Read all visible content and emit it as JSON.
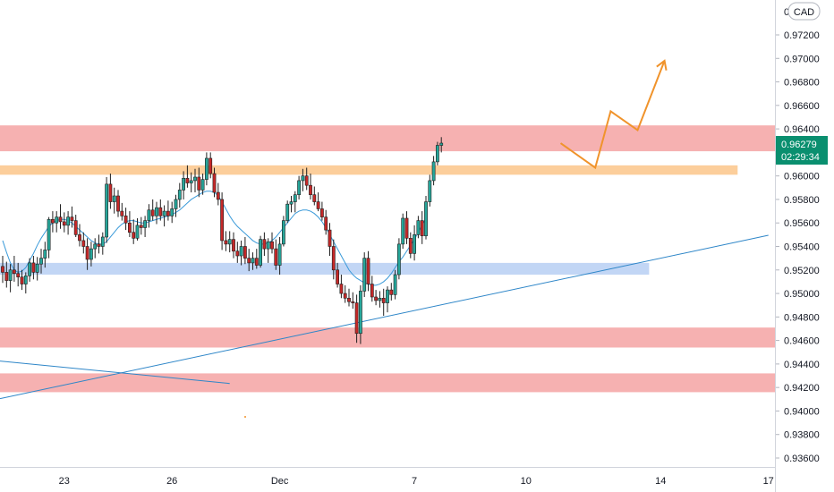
{
  "chart_data": {
    "type": "candlestick",
    "currency": "CAD",
    "y_ticks": [
      "0.97200",
      "0.97000",
      "0.96800",
      "0.96600",
      "0.96400",
      "0.96000",
      "0.95800",
      "0.95600",
      "0.95400",
      "0.95200",
      "0.95000",
      "0.94800",
      "0.94600",
      "0.94400",
      "0.94200",
      "0.94000",
      "0.93800",
      "0.93600"
    ],
    "x_ticks": [
      "23",
      "26",
      "Dec",
      "7",
      "10",
      "14",
      "17"
    ],
    "x_tick_index": [
      16,
      44,
      72,
      107,
      136,
      171,
      199
    ],
    "last_price": "0.96279",
    "countdown": "02:29:34",
    "colors": {
      "up": "#26a69a",
      "down": "#c62828",
      "red_zone": "#f5a3a3",
      "orange_zone": "#fbc58a",
      "blue_zone": "#b7cff3",
      "trendline": "#2e86c8",
      "ma": "#3a9ad9",
      "projection": "#f0932b",
      "badge": "#0a8f6f"
    },
    "zones": [
      {
        "kind": "red",
        "from": 0.9621,
        "to": 0.9643,
        "start": 0,
        "end": null
      },
      {
        "kind": "orange",
        "from": 0.9601,
        "to": 0.9609,
        "start": 0,
        "end": 191
      },
      {
        "kind": "blue",
        "from": 0.9516,
        "to": 0.9526,
        "start": 0,
        "end": 168
      },
      {
        "kind": "red",
        "from": 0.9454,
        "to": 0.9471,
        "start": 0,
        "end": null
      },
      {
        "kind": "red",
        "from": 0.9416,
        "to": 0.9432,
        "start": 0,
        "end": null
      }
    ],
    "trendlines": [
      {
        "from": [
          0,
          0.94105
        ],
        "to": [
          199,
          0.95495
        ]
      },
      {
        "from": [
          0,
          0.94425
        ],
        "to": [
          59,
          0.94234
        ]
      }
    ],
    "projection_path": [
      [
        145,
        0.96279
      ],
      [
        154,
        0.9607
      ],
      [
        158,
        0.9655
      ],
      [
        165,
        0.9639
      ],
      [
        172,
        0.9698
      ]
    ],
    "candles": [
      [
        0.9523,
        0.9532,
        0.9509,
        0.9518
      ],
      [
        0.9518,
        0.9527,
        0.9505,
        0.9511
      ],
      [
        0.9511,
        0.9525,
        0.9501,
        0.952
      ],
      [
        0.952,
        0.9532,
        0.951,
        0.9517
      ],
      [
        0.9517,
        0.9526,
        0.9506,
        0.9514
      ],
      [
        0.9514,
        0.952,
        0.9503,
        0.9508
      ],
      [
        0.9508,
        0.9518,
        0.95,
        0.9515
      ],
      [
        0.9515,
        0.953,
        0.951,
        0.9526
      ],
      [
        0.9526,
        0.9532,
        0.9512,
        0.9518
      ],
      [
        0.9518,
        0.9531,
        0.9511,
        0.9525
      ],
      [
        0.9525,
        0.9538,
        0.9517,
        0.953
      ],
      [
        0.953,
        0.9544,
        0.9522,
        0.9537
      ],
      [
        0.9537,
        0.9565,
        0.953,
        0.9563
      ],
      [
        0.9563,
        0.957,
        0.9552,
        0.956
      ],
      [
        0.956,
        0.957,
        0.9552,
        0.9565
      ],
      [
        0.9565,
        0.9576,
        0.9555,
        0.9561
      ],
      [
        0.9561,
        0.9569,
        0.9552,
        0.9558
      ],
      [
        0.9558,
        0.957,
        0.955,
        0.9565
      ],
      [
        0.9565,
        0.9574,
        0.9556,
        0.9562
      ],
      [
        0.9562,
        0.9567,
        0.9548,
        0.955
      ],
      [
        0.955,
        0.9559,
        0.954,
        0.9545
      ],
      [
        0.9545,
        0.9552,
        0.9534,
        0.954
      ],
      [
        0.954,
        0.9547,
        0.952,
        0.9529
      ],
      [
        0.9529,
        0.9544,
        0.9523,
        0.9538
      ],
      [
        0.9538,
        0.9547,
        0.953,
        0.9542
      ],
      [
        0.9542,
        0.955,
        0.9534,
        0.954
      ],
      [
        0.954,
        0.9552,
        0.9533,
        0.9548
      ],
      [
        0.9548,
        0.9599,
        0.9543,
        0.9593
      ],
      [
        0.9593,
        0.9602,
        0.9572,
        0.9578
      ],
      [
        0.9578,
        0.959,
        0.9568,
        0.9583
      ],
      [
        0.9583,
        0.9588,
        0.9565,
        0.957
      ],
      [
        0.957,
        0.9577,
        0.9562,
        0.9566
      ],
      [
        0.9566,
        0.9573,
        0.9554,
        0.956
      ],
      [
        0.956,
        0.957,
        0.9548,
        0.9552
      ],
      [
        0.9552,
        0.9563,
        0.9542,
        0.9547
      ],
      [
        0.9547,
        0.9564,
        0.9545,
        0.9558
      ],
      [
        0.9558,
        0.9565,
        0.955,
        0.9556
      ],
      [
        0.9556,
        0.9566,
        0.9548,
        0.9562
      ],
      [
        0.9562,
        0.9576,
        0.9556,
        0.9571
      ],
      [
        0.9571,
        0.958,
        0.9562,
        0.9566
      ],
      [
        0.9566,
        0.9578,
        0.9559,
        0.9573
      ],
      [
        0.9573,
        0.958,
        0.9562,
        0.9566
      ],
      [
        0.9566,
        0.9575,
        0.9557,
        0.957
      ],
      [
        0.957,
        0.9579,
        0.9562,
        0.9566
      ],
      [
        0.9566,
        0.9578,
        0.956,
        0.9572
      ],
      [
        0.9572,
        0.9584,
        0.9565,
        0.958
      ],
      [
        0.958,
        0.9594,
        0.9573,
        0.9588
      ],
      [
        0.9588,
        0.9604,
        0.958,
        0.9598
      ],
      [
        0.9598,
        0.9609,
        0.959,
        0.9594
      ],
      [
        0.9594,
        0.9603,
        0.9586,
        0.9596
      ],
      [
        0.9596,
        0.9606,
        0.9586,
        0.9599
      ],
      [
        0.9599,
        0.9607,
        0.9582,
        0.9588
      ],
      [
        0.9588,
        0.9602,
        0.9584,
        0.9597
      ],
      [
        0.9597,
        0.962,
        0.9592,
        0.9615
      ],
      [
        0.9615,
        0.962,
        0.9598,
        0.9602
      ],
      [
        0.9602,
        0.9607,
        0.9582,
        0.9586
      ],
      [
        0.9586,
        0.9594,
        0.9575,
        0.958
      ],
      [
        0.958,
        0.9586,
        0.9537,
        0.9545
      ],
      [
        0.9545,
        0.9553,
        0.9536,
        0.9542
      ],
      [
        0.9542,
        0.9553,
        0.9535,
        0.9546
      ],
      [
        0.9546,
        0.9552,
        0.953,
        0.9536
      ],
      [
        0.9536,
        0.9544,
        0.9526,
        0.9532
      ],
      [
        0.9532,
        0.9545,
        0.9524,
        0.954
      ],
      [
        0.954,
        0.9548,
        0.9525,
        0.953
      ],
      [
        0.953,
        0.9538,
        0.9519,
        0.9526
      ],
      [
        0.9526,
        0.9535,
        0.952,
        0.953
      ],
      [
        0.953,
        0.9538,
        0.9521,
        0.9524
      ],
      [
        0.9524,
        0.9549,
        0.9522,
        0.9546
      ],
      [
        0.9546,
        0.9552,
        0.9532,
        0.9538
      ],
      [
        0.9538,
        0.9547,
        0.9526,
        0.9544
      ],
      [
        0.9544,
        0.9552,
        0.9534,
        0.9538
      ],
      [
        0.9538,
        0.9546,
        0.952,
        0.9524
      ],
      [
        0.9524,
        0.9548,
        0.9516,
        0.9542
      ],
      [
        0.9542,
        0.9566,
        0.954,
        0.9562
      ],
      [
        0.9562,
        0.9579,
        0.956,
        0.9576
      ],
      [
        0.9576,
        0.9583,
        0.9569,
        0.9578
      ],
      [
        0.9578,
        0.9587,
        0.9569,
        0.9584
      ],
      [
        0.9584,
        0.96,
        0.958,
        0.9596
      ],
      [
        0.9596,
        0.9606,
        0.9587,
        0.96
      ],
      [
        0.96,
        0.9607,
        0.9588,
        0.9592
      ],
      [
        0.9592,
        0.9602,
        0.958,
        0.9584
      ],
      [
        0.9584,
        0.9591,
        0.9575,
        0.9578
      ],
      [
        0.9578,
        0.9586,
        0.957,
        0.9572
      ],
      [
        0.9572,
        0.9578,
        0.9562,
        0.9565
      ],
      [
        0.9565,
        0.9571,
        0.955,
        0.9554
      ],
      [
        0.9554,
        0.956,
        0.9532,
        0.954
      ],
      [
        0.954,
        0.9546,
        0.9512,
        0.952
      ],
      [
        0.952,
        0.9526,
        0.9505,
        0.9508
      ],
      [
        0.9508,
        0.9516,
        0.9496,
        0.95
      ],
      [
        0.95,
        0.9507,
        0.9492,
        0.9496
      ],
      [
        0.9496,
        0.9504,
        0.9489,
        0.9493
      ],
      [
        0.9493,
        0.9501,
        0.9487,
        0.9492
      ],
      [
        0.9492,
        0.9499,
        0.9458,
        0.9466
      ],
      [
        0.9466,
        0.9507,
        0.9457,
        0.9502
      ],
      [
        0.9502,
        0.9535,
        0.9497,
        0.953
      ],
      [
        0.953,
        0.9536,
        0.9502,
        0.9508
      ],
      [
        0.9508,
        0.9515,
        0.9493,
        0.9497
      ],
      [
        0.9497,
        0.9503,
        0.949,
        0.9494
      ],
      [
        0.9494,
        0.9502,
        0.9488,
        0.9496
      ],
      [
        0.9496,
        0.9504,
        0.9481,
        0.9492
      ],
      [
        0.9492,
        0.9506,
        0.9484,
        0.9503
      ],
      [
        0.9503,
        0.9509,
        0.9494,
        0.9499
      ],
      [
        0.9499,
        0.952,
        0.9495,
        0.9516
      ],
      [
        0.9516,
        0.9547,
        0.9512,
        0.9542
      ],
      [
        0.9542,
        0.9568,
        0.9538,
        0.9564
      ],
      [
        0.9564,
        0.957,
        0.9542,
        0.9547
      ],
      [
        0.9547,
        0.9552,
        0.953,
        0.9534
      ],
      [
        0.9534,
        0.9558,
        0.9528,
        0.955
      ],
      [
        0.955,
        0.9566,
        0.9547,
        0.9562
      ],
      [
        0.9562,
        0.957,
        0.9542,
        0.9549
      ],
      [
        0.9549,
        0.9583,
        0.9546,
        0.9578
      ],
      [
        0.9578,
        0.9601,
        0.9574,
        0.9596
      ],
      [
        0.9596,
        0.9617,
        0.9592,
        0.9612
      ],
      [
        0.9612,
        0.9629,
        0.9609,
        0.9626
      ],
      [
        0.9626,
        0.9633,
        0.962,
        0.96279
      ]
    ],
    "ma": [
      0.9545,
      0.9535,
      0.9526,
      0.952,
      0.9518,
      0.9519,
      0.9522,
      0.9528,
      0.9534,
      0.9541,
      0.9547,
      0.9552,
      0.9557,
      0.956,
      0.9562,
      0.9563,
      0.9563,
      0.9562,
      0.956,
      0.9557,
      0.9554,
      0.9551,
      0.9548,
      0.9545,
      0.9543,
      0.9542,
      0.9542,
      0.9544,
      0.9548,
      0.9552,
      0.9556,
      0.9559,
      0.9561,
      0.9562,
      0.9562,
      0.9561,
      0.956,
      0.956,
      0.9561,
      0.9562,
      0.9563,
      0.9564,
      0.9565,
      0.9566,
      0.9567,
      0.9569,
      0.9571,
      0.9574,
      0.9577,
      0.958,
      0.9582,
      0.9584,
      0.9586,
      0.9587,
      0.9587,
      0.9586,
      0.9583,
      0.9578,
      0.9572,
      0.9566,
      0.9561,
      0.9557,
      0.9554,
      0.9551,
      0.9548,
      0.9545,
      0.9543,
      0.9542,
      0.9542,
      0.9543,
      0.9545,
      0.9548,
      0.9552,
      0.9556,
      0.956,
      0.9564,
      0.9568,
      0.957,
      0.9571,
      0.9571,
      0.957,
      0.9568,
      0.9565,
      0.9561,
      0.9556,
      0.955,
      0.9544,
      0.9538,
      0.9532,
      0.9526,
      0.952,
      0.9516,
      0.9513,
      0.9511,
      0.9509,
      0.9508,
      0.9507,
      0.9507,
      0.9508,
      0.951,
      0.9513,
      0.9517,
      0.9522,
      0.9527,
      0.9531,
      0.9536,
      0.9541,
      0.9546,
      0.9552,
      0.9558,
      0.9564
    ]
  }
}
